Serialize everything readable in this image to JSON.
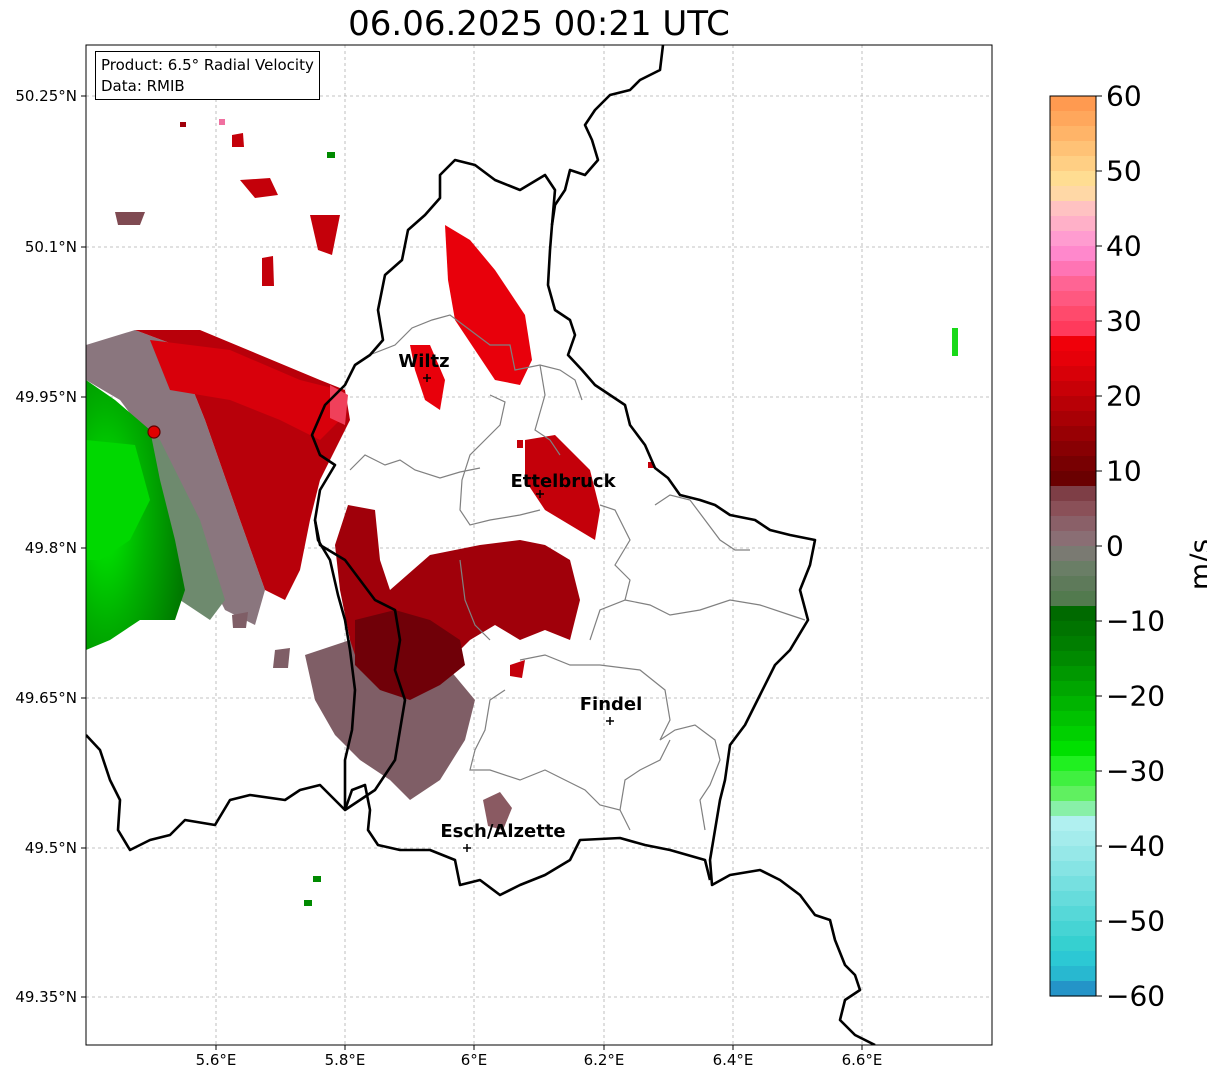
{
  "title": "06.06.2025 00:21 UTC",
  "info_box": {
    "product": "Product: 6.5° Radial Velocity",
    "data": "Data: RMIB"
  },
  "map": {
    "lat_labels": [
      "50.25°N",
      "50.1°N",
      "49.95°N",
      "49.8°N",
      "49.65°N",
      "49.5°N",
      "49.35°N"
    ],
    "lon_labels": [
      "5.6°E",
      "5.8°E",
      "6°E",
      "6.2°E",
      "6.4°E",
      "6.6°E"
    ],
    "cities": [
      {
        "name": "Wiltz"
      },
      {
        "name": "Ettelbruck"
      },
      {
        "name": "Findel"
      },
      {
        "name": "Esch/Alzette"
      }
    ],
    "colors": {
      "border": "#000000",
      "canton_lines": "#808080",
      "gridlines": "#b0b0b0",
      "radar_site": "#e00000"
    }
  },
  "colorbar": {
    "unit": "m/s",
    "ticks": [
      "60",
      "50",
      "40",
      "30",
      "20",
      "10",
      "0",
      "−10",
      "−20",
      "−30",
      "−40",
      "−50",
      "−60"
    ],
    "range": [
      -60,
      60
    ]
  },
  "legend_colors": {
    "velocity_positive_strong": "#e8000b",
    "velocity_positive_mid": "#b00000",
    "velocity_positive_low": "#7a0000",
    "velocity_near_zero": "#8a6a70",
    "velocity_negative_low": "#5a7a5a",
    "velocity_negative_mid": "#008a00",
    "velocity_negative_strong": "#00e000"
  }
}
